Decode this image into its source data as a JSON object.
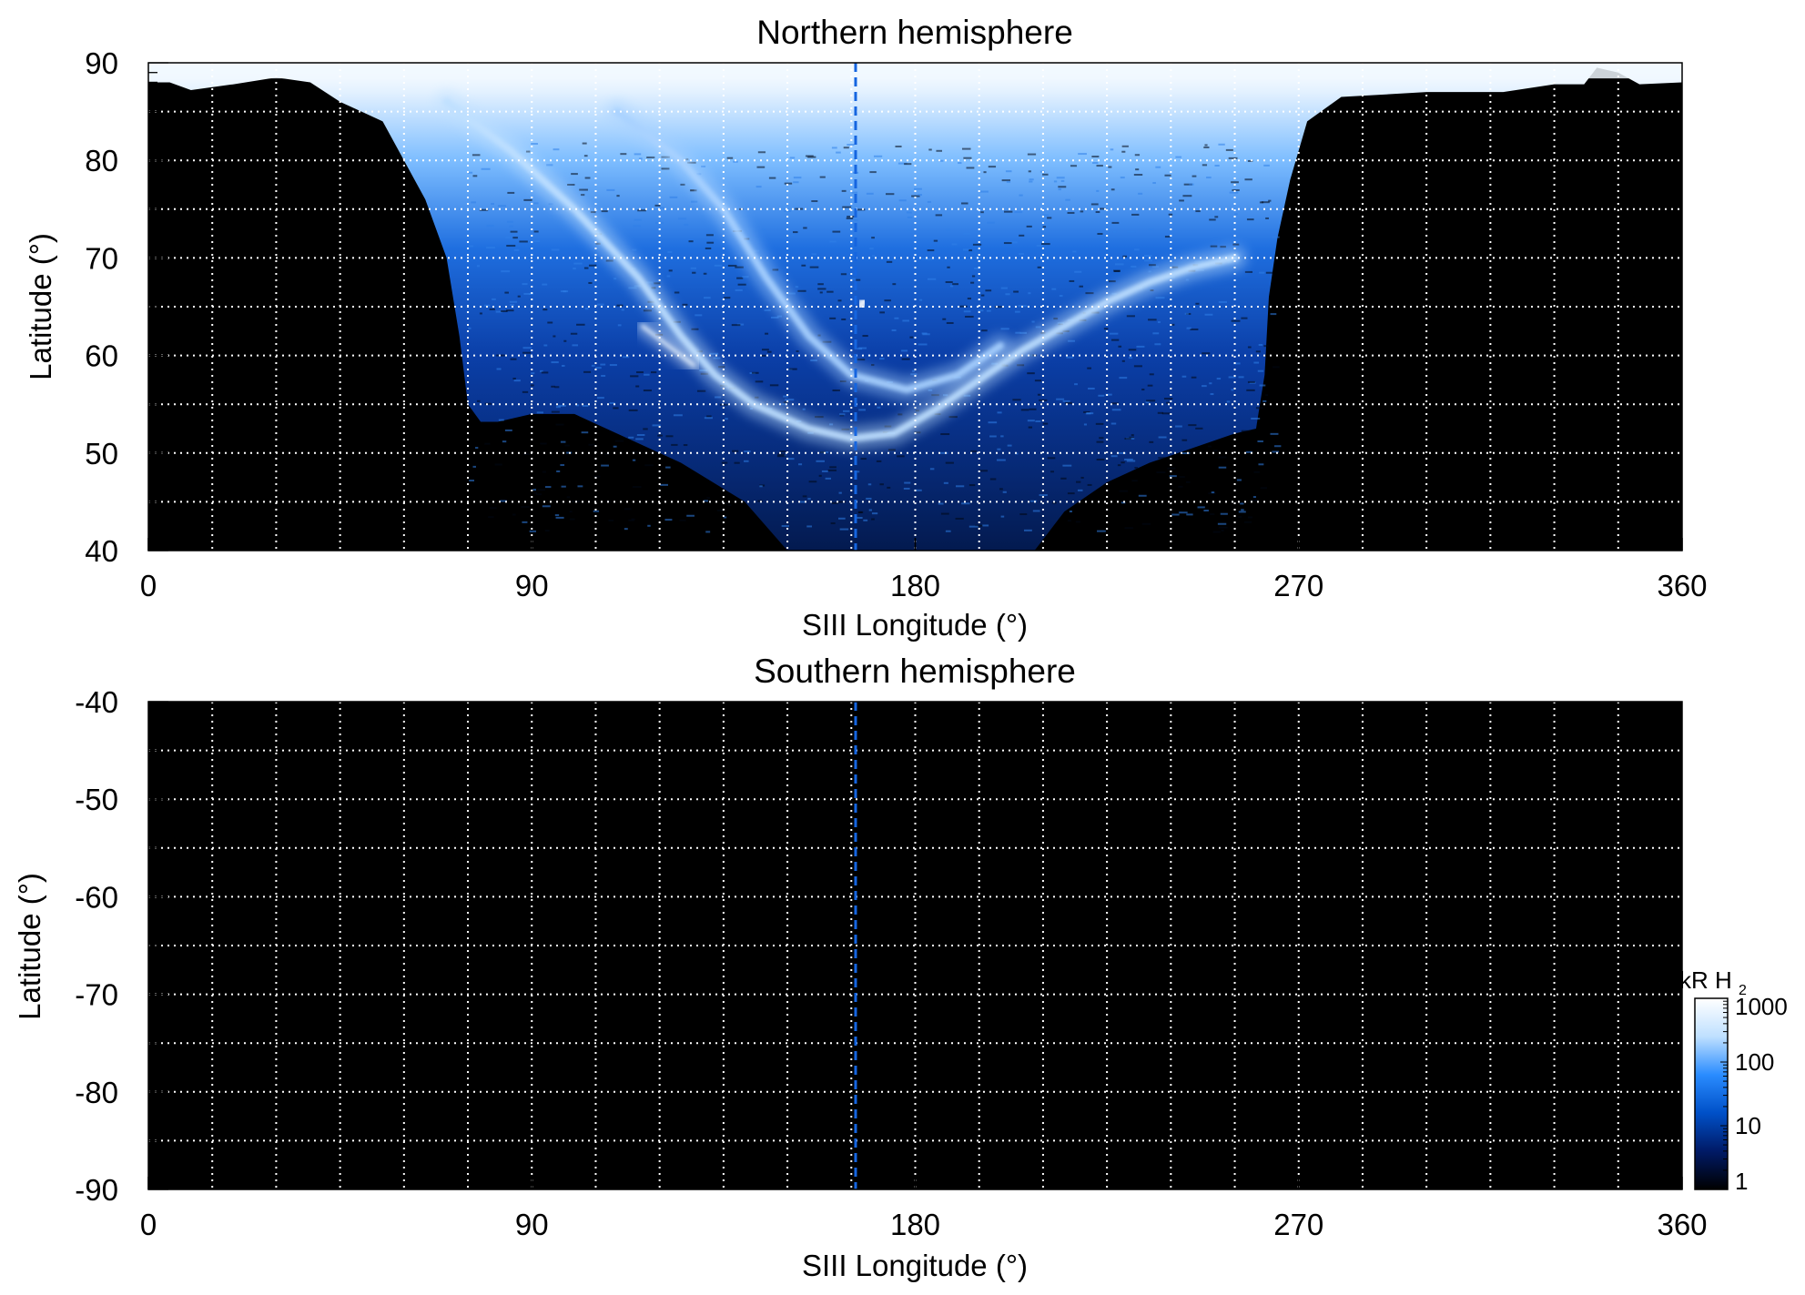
{
  "chart_data": [
    {
      "type": "heatmap",
      "title": "Northern hemisphere",
      "xlabel": "SIII Longitude (°)",
      "ylabel": "Latitude (°)",
      "xlim": [
        0,
        360
      ],
      "ylim": [
        40,
        90
      ],
      "x_ticks": [
        0,
        90,
        180,
        270,
        360
      ],
      "x_tick_labels": [
        "0",
        "90",
        "180",
        "270",
        "360"
      ],
      "y_ticks": [
        40,
        50,
        60,
        70,
        80,
        90
      ],
      "y_tick_labels": [
        "40",
        "50",
        "60",
        "70",
        "80",
        "90"
      ],
      "grid": true,
      "grid_x_step": 15,
      "grid_y_step": 5,
      "minor_y_step": 1,
      "reference_longitude": 166,
      "background_color": "#000000",
      "coverage_lower_boundary": [
        [
          0,
          88
        ],
        [
          5,
          88
        ],
        [
          10,
          87.2
        ],
        [
          20,
          87.8
        ],
        [
          30,
          88.5
        ],
        [
          38,
          88
        ],
        [
          45,
          86
        ],
        [
          55,
          84
        ],
        [
          60,
          80
        ],
        [
          65,
          76
        ],
        [
          70,
          70
        ],
        [
          73,
          62
        ],
        [
          75,
          55
        ],
        [
          78,
          53.2
        ],
        [
          82,
          53.2
        ],
        [
          90,
          54
        ],
        [
          100,
          54
        ],
        [
          110,
          52
        ],
        [
          125,
          49
        ],
        [
          140,
          45
        ],
        [
          150,
          40
        ],
        [
          208,
          40
        ],
        [
          215,
          44
        ],
        [
          225,
          47
        ],
        [
          235,
          49
        ],
        [
          245,
          50.5
        ],
        [
          255,
          52
        ],
        [
          260,
          52.5
        ],
        [
          262,
          58
        ],
        [
          263,
          66
        ],
        [
          265,
          72
        ],
        [
          268,
          78
        ],
        [
          272,
          84
        ],
        [
          280,
          86.5
        ],
        [
          300,
          87
        ],
        [
          318,
          87
        ],
        [
          330,
          87.8
        ],
        [
          337,
          87.8
        ],
        [
          340,
          89.5
        ],
        [
          345,
          89
        ],
        [
          350,
          87.8
        ],
        [
          360,
          88
        ]
      ],
      "features": [
        {
          "name": "main auroral oval",
          "color": "#bfe0ff",
          "points": [
            [
              70,
              86
            ],
            [
              85,
              81
            ],
            [
              100,
              75
            ],
            [
              115,
              68
            ],
            [
              125,
              62
            ],
            [
              133,
              58
            ],
            [
              142,
              55
            ],
            [
              155,
              52.5
            ],
            [
              165,
              51.5
            ],
            [
              175,
              52
            ],
            [
              185,
              54.5
            ],
            [
              195,
              57.5
            ],
            [
              205,
              60.5
            ],
            [
              215,
              63
            ],
            [
              225,
              65.5
            ],
            [
              235,
              67.5
            ],
            [
              245,
              69
            ],
            [
              255,
              70
            ]
          ]
        },
        {
          "name": "inner arc",
          "color": "#a9d2ff",
          "points": [
            [
              110,
              85
            ],
            [
              125,
              80
            ],
            [
              135,
              75
            ],
            [
              145,
              68
            ],
            [
              155,
              62
            ],
            [
              165,
              58
            ],
            [
              178,
              56.5
            ],
            [
              190,
              58
            ],
            [
              200,
              61
            ]
          ]
        },
        {
          "name": "dawn streak",
          "color": "#eaf5ff",
          "points": [
            [
              116,
              63
            ],
            [
              122,
              61
            ],
            [
              128,
              59
            ]
          ]
        },
        {
          "name": "polar spot",
          "color": "#ffffff",
          "points": [
            [
              167,
              65
            ],
            [
              168,
              65.6
            ]
          ]
        }
      ]
    },
    {
      "type": "heatmap",
      "title": "Southern hemisphere",
      "xlabel": "SIII Longitude (°)",
      "ylabel": "Latitude (°)",
      "xlim": [
        0,
        360
      ],
      "ylim": [
        -90,
        -40
      ],
      "x_ticks": [
        0,
        90,
        180,
        270,
        360
      ],
      "x_tick_labels": [
        "0",
        "90",
        "180",
        "270",
        "360"
      ],
      "y_ticks": [
        -40,
        -50,
        -60,
        -70,
        -80,
        -90
      ],
      "y_tick_labels": [
        "-40",
        "-50",
        "-60",
        "-70",
        "-80",
        "-90"
      ],
      "grid": true,
      "grid_x_step": 15,
      "grid_y_step": 5,
      "minor_y_step": 1,
      "reference_longitude": 166,
      "background_color": "#000000"
    }
  ],
  "colorbar": {
    "label_prefix": "kR H",
    "label_subscript": "2",
    "scale": "log",
    "range": [
      1,
      1000
    ],
    "ticks": [
      1000,
      100,
      10,
      1
    ],
    "tick_labels": [
      "1000",
      "100",
      "10",
      "1"
    ],
    "colors": [
      "#000000",
      "#001a66",
      "#0050c8",
      "#2a8cff",
      "#bfe0ff",
      "#ffffff"
    ]
  }
}
